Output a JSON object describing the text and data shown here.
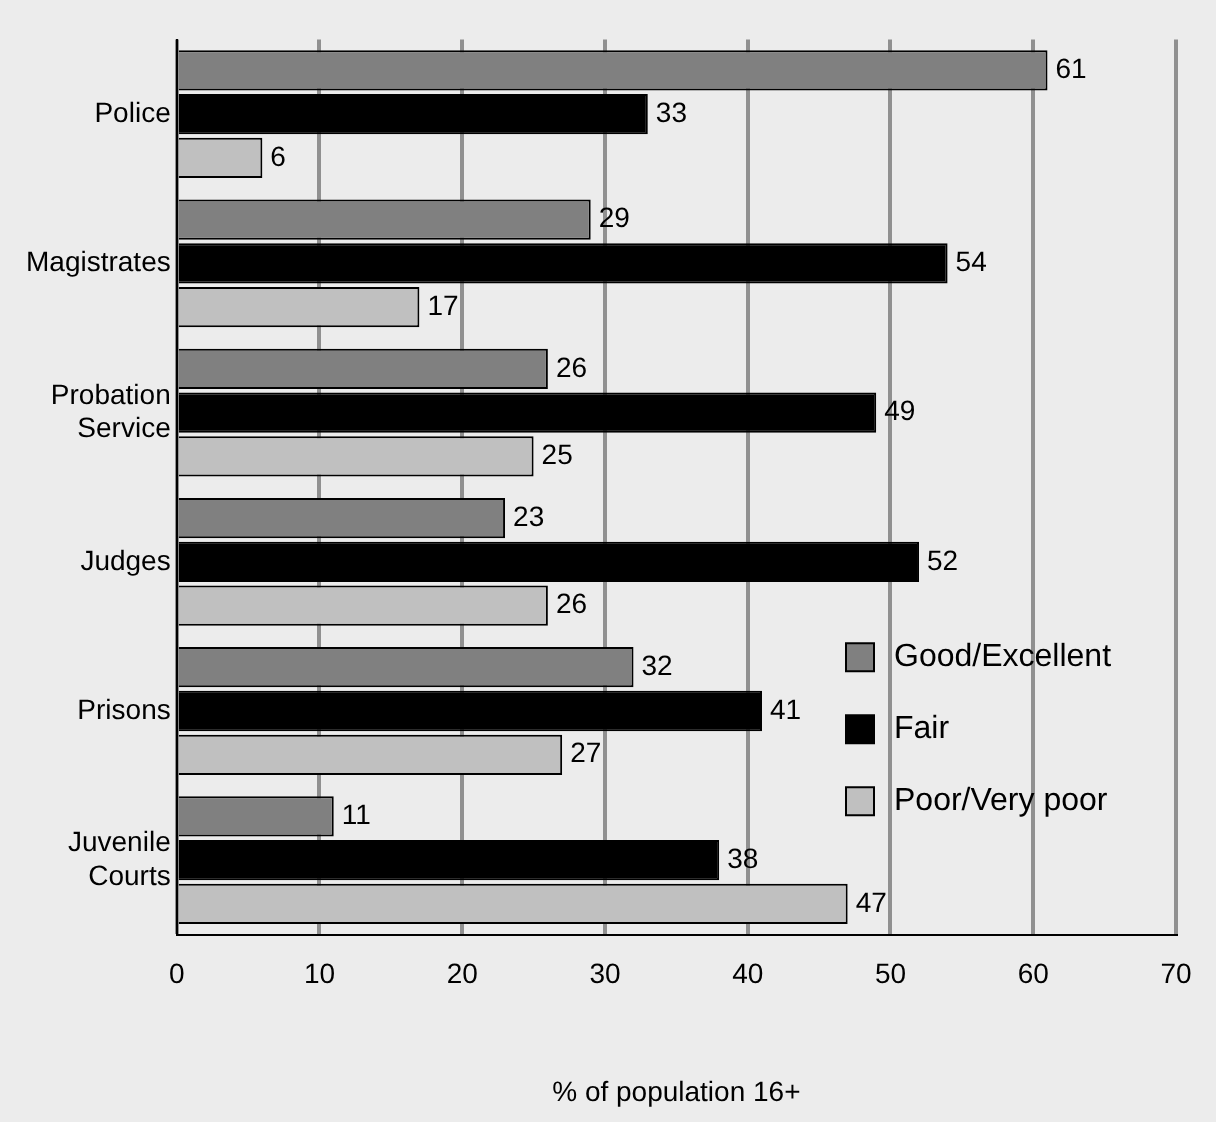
{
  "chart_data": {
    "type": "bar",
    "orientation": "horizontal",
    "xlabel": "% of population 16+",
    "categories": [
      "Police",
      "Magistrates",
      "Probation Service",
      "Judges",
      "Prisons",
      "Juvenile Courts"
    ],
    "series": [
      {
        "name": "Good/Excellent",
        "color": "#808080",
        "values": [
          61,
          29,
          26,
          23,
          32,
          11
        ]
      },
      {
        "name": "Fair",
        "color": "#000000",
        "values": [
          33,
          54,
          49,
          52,
          41,
          38
        ]
      },
      {
        "name": "Poor/Very poor",
        "color": "#c0c0c0",
        "values": [
          6,
          17,
          25,
          26,
          27,
          47
        ]
      }
    ],
    "xlim": [
      0,
      70
    ],
    "xticks": [
      0,
      10,
      20,
      30,
      40,
      50,
      60,
      70
    ],
    "grid": "x",
    "legend": "right",
    "data_labels": true
  }
}
